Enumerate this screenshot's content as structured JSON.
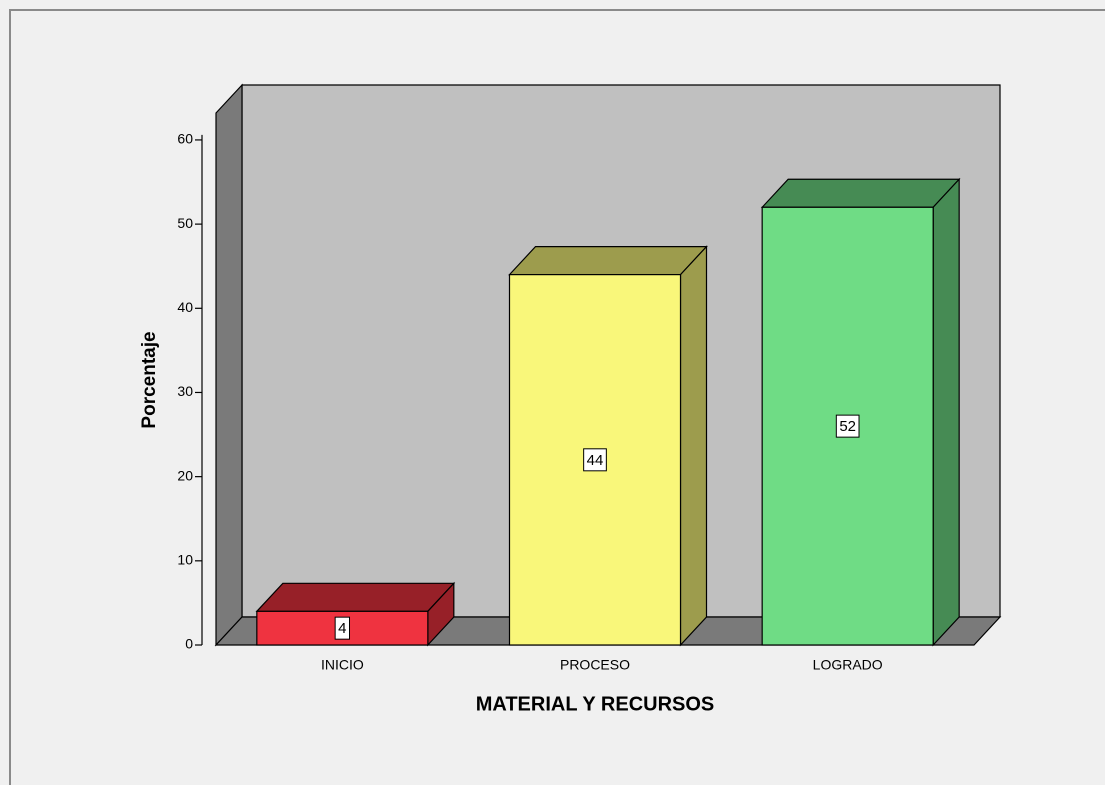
{
  "chart_data": {
    "type": "bar3d",
    "categories": [
      "INICIO",
      "PROCESO",
      "LOGRADO"
    ],
    "values": [
      4,
      44,
      52
    ],
    "colors": [
      "#ef3340",
      "#f9f77a",
      "#6fdc85"
    ],
    "ylabel": "Porcentaje",
    "xlabel": "MATERIAL Y RECURSOS",
    "ylim": [
      0,
      63.2
    ],
    "yticks": [
      0,
      10,
      20,
      30,
      40,
      50,
      60
    ]
  }
}
